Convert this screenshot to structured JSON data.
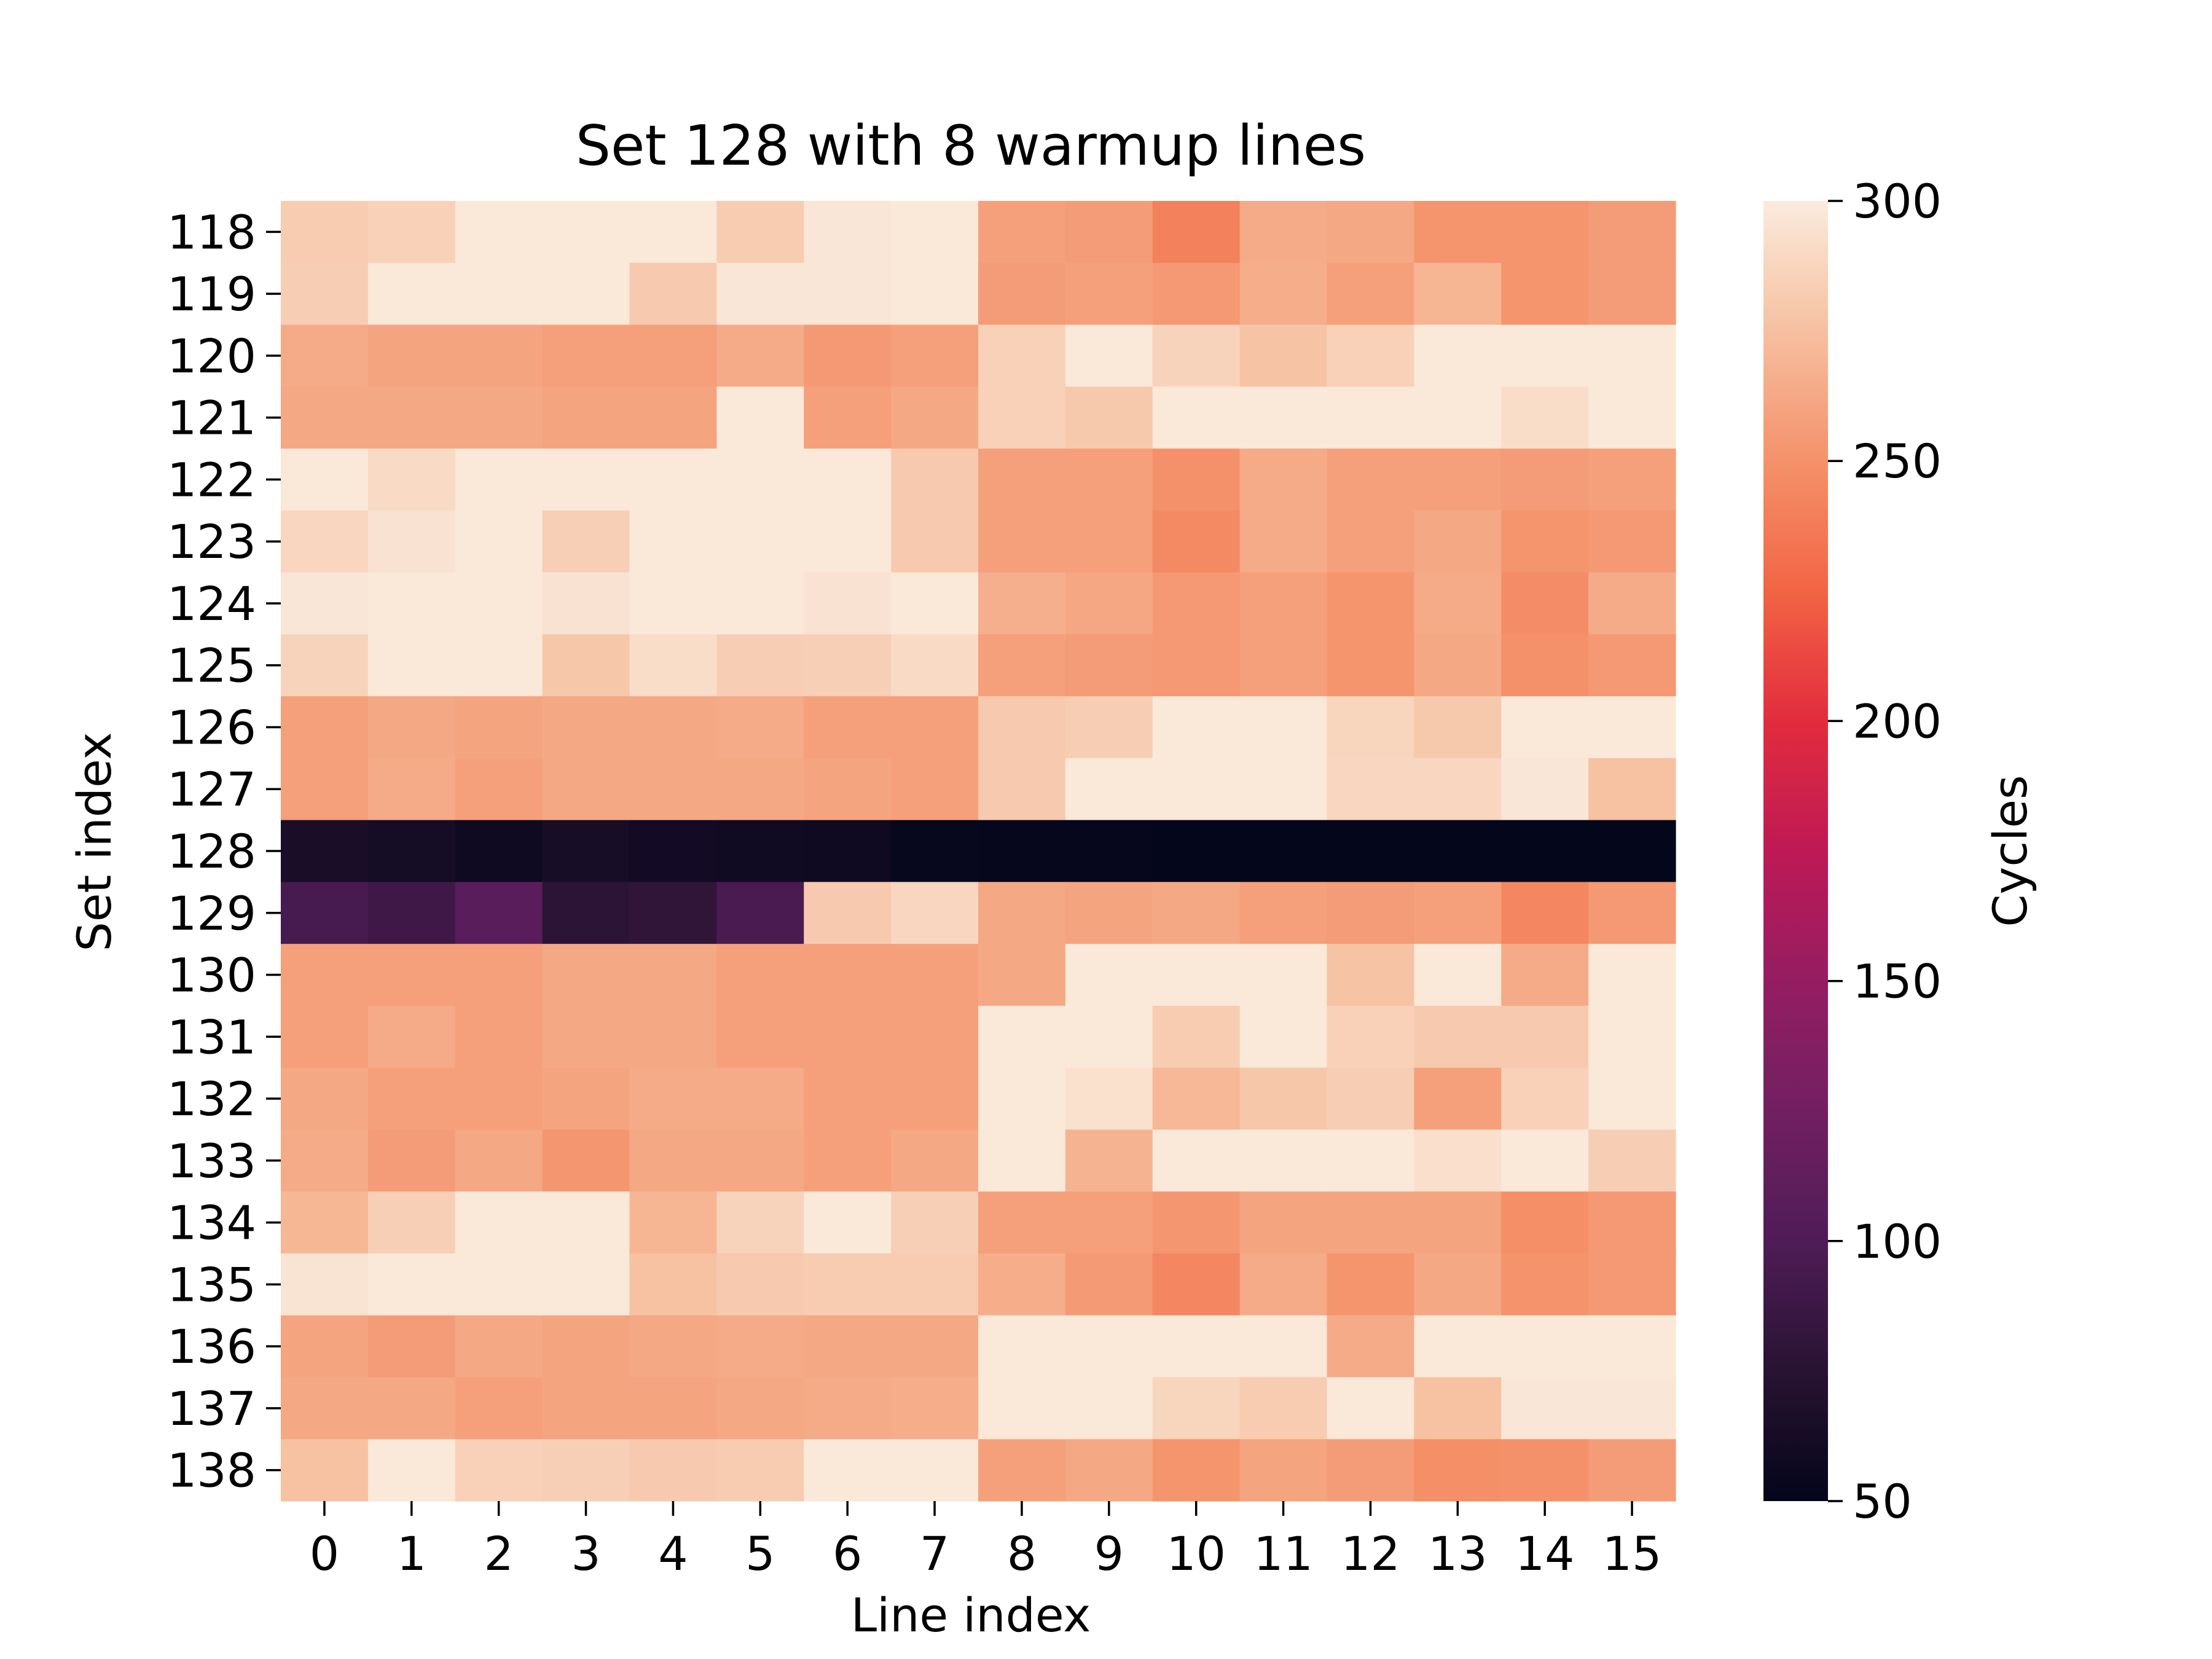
{
  "chart_data": {
    "type": "heatmap",
    "title": "Set 128 with 8 warmup lines",
    "xlabel": "Line index",
    "ylabel": "Set index",
    "x_categories": [
      "0",
      "1",
      "2",
      "3",
      "4",
      "5",
      "6",
      "7",
      "8",
      "9",
      "10",
      "11",
      "12",
      "13",
      "14",
      "15"
    ],
    "y_categories": [
      "118",
      "119",
      "120",
      "121",
      "122",
      "123",
      "124",
      "125",
      "126",
      "127",
      "128",
      "129",
      "130",
      "131",
      "132",
      "133",
      "134",
      "135",
      "136",
      "137",
      "138"
    ],
    "values": [
      [
        282,
        285,
        298,
        298,
        298,
        282,
        297,
        298,
        258,
        256,
        241,
        264,
        262,
        252,
        252,
        256
      ],
      [
        283,
        298,
        298,
        298,
        281,
        297,
        297,
        298,
        256,
        258,
        254,
        265,
        258,
        269,
        252,
        256
      ],
      [
        264,
        260,
        260,
        258,
        258,
        264,
        254,
        258,
        285,
        298,
        286,
        277,
        285,
        298,
        298,
        298
      ],
      [
        262,
        262,
        262,
        260,
        260,
        298,
        258,
        262,
        285,
        280,
        298,
        298,
        298,
        298,
        292,
        298
      ],
      [
        298,
        290,
        298,
        298,
        298,
        298,
        298,
        281,
        258,
        258,
        250,
        264,
        258,
        258,
        256,
        258
      ],
      [
        288,
        295,
        298,
        284,
        298,
        298,
        298,
        281,
        258,
        258,
        246,
        264,
        258,
        262,
        252,
        254
      ],
      [
        297,
        298,
        298,
        295,
        298,
        298,
        295,
        298,
        266,
        261,
        254,
        258,
        252,
        264,
        248,
        264
      ],
      [
        286,
        298,
        298,
        279,
        292,
        283,
        284,
        290,
        258,
        256,
        254,
        258,
        252,
        262,
        250,
        254
      ],
      [
        258,
        262,
        260,
        262,
        262,
        264,
        258,
        258,
        281,
        283,
        298,
        298,
        287,
        280,
        298,
        298
      ],
      [
        258,
        264,
        258,
        262,
        262,
        262,
        260,
        258,
        281,
        298,
        298,
        298,
        288,
        288,
        297,
        276
      ],
      [
        65,
        62,
        58,
        64,
        61,
        59,
        58,
        53,
        52,
        52,
        51,
        51,
        51,
        51,
        51,
        51
      ],
      [
        95,
        90,
        108,
        77,
        80,
        96,
        281,
        288,
        262,
        260,
        262,
        258,
        256,
        258,
        244,
        254
      ],
      [
        258,
        258,
        258,
        262,
        262,
        258,
        258,
        258,
        262,
        298,
        298,
        298,
        277,
        298,
        264,
        298
      ],
      [
        258,
        264,
        258,
        262,
        262,
        258,
        258,
        258,
        298,
        298,
        282,
        298,
        285,
        281,
        281,
        298
      ],
      [
        262,
        258,
        258,
        260,
        264,
        264,
        258,
        258,
        298,
        294,
        271,
        279,
        283,
        258,
        285,
        298
      ],
      [
        264,
        256,
        262,
        253,
        262,
        262,
        258,
        262,
        298,
        268,
        298,
        298,
        298,
        293,
        298,
        283
      ],
      [
        270,
        284,
        298,
        298,
        269,
        286,
        298,
        284,
        258,
        258,
        253,
        260,
        260,
        260,
        249,
        254
      ],
      [
        296,
        298,
        298,
        298,
        276,
        281,
        282,
        282,
        265,
        255,
        244,
        264,
        252,
        262,
        251,
        254
      ],
      [
        260,
        256,
        262,
        260,
        262,
        264,
        262,
        262,
        298,
        298,
        298,
        298,
        264,
        298,
        298,
        298
      ],
      [
        262,
        262,
        258,
        260,
        260,
        262,
        264,
        265,
        298,
        298,
        287,
        282,
        298,
        276,
        297,
        297
      ],
      [
        276,
        298,
        285,
        284,
        281,
        282,
        298,
        298,
        258,
        262,
        252,
        260,
        256,
        249,
        250,
        256
      ]
    ],
    "colorbar": {
      "label": "Cycles",
      "vmin": 50,
      "vmax": 300,
      "ticks": [
        "50",
        "100",
        "150",
        "200",
        "250",
        "300"
      ],
      "colormap": "rocket"
    }
  }
}
